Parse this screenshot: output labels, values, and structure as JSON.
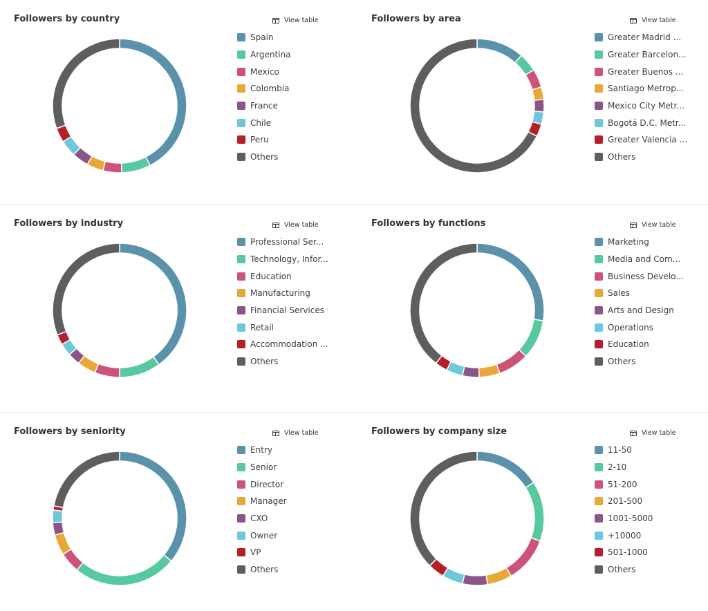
{
  "view_table_label": "View table",
  "colors": [
    "#5b92ab",
    "#57c99e",
    "#cc5478",
    "#e8a838",
    "#8a568a",
    "#6cc8da",
    "#b51f2a",
    "#5e5e5e"
  ],
  "chart_data": [
    {
      "type": "pie",
      "title": "Followers by country",
      "categories": [
        "Spain",
        "Argentina",
        "Mexico",
        "Colombia",
        "France",
        "Chile",
        "Peru",
        "Others"
      ],
      "values": [
        42.5,
        7,
        4.5,
        4,
        4,
        4,
        3.5,
        30.5
      ]
    },
    {
      "type": "pie",
      "title": "Followers by area",
      "categories": [
        "Greater Madrid ...",
        "Greater Barcelon...",
        "Greater Buenos ...",
        "Santiago Metrop...",
        "Mexico City Metr...",
        "Bogotá D.C. Metr...",
        "Greater Valencia ...",
        "Others"
      ],
      "values": [
        11.5,
        4.5,
        4.5,
        3,
        3,
        3,
        3,
        67.5
      ]
    },
    {
      "type": "pie",
      "title": "Followers by industry",
      "categories": [
        "Professional Ser...",
        "Technology, Infor...",
        "Education",
        "Manufacturing",
        "Financial Services",
        "Retail",
        "Accommodation ...",
        "Others"
      ],
      "values": [
        40,
        10,
        6,
        4.5,
        3,
        3,
        2.5,
        31
      ]
    },
    {
      "type": "pie",
      "title": "Followers by functions",
      "categories": [
        "Marketing",
        "Media and Com...",
        "Business Develo...",
        "Sales",
        "Arts and Design",
        "Operations",
        "Education",
        "Others"
      ],
      "values": [
        27.5,
        9.5,
        7.5,
        5,
        4,
        4,
        3,
        39.5
      ]
    },
    {
      "type": "pie",
      "title": "Followers by seniority",
      "categories": [
        "Entry",
        "Senior",
        "Director",
        "Manager",
        "CXO",
        "Owner",
        "VP",
        "Others"
      ],
      "values": [
        36,
        25,
        5,
        5,
        3,
        3,
        1,
        22
      ]
    },
    {
      "type": "pie",
      "title": "Followers by company size",
      "categories": [
        "11-50",
        "2-10",
        "51-200",
        "201-500",
        "1001-5000",
        "+10000",
        "501-1000",
        "Others"
      ],
      "values": [
        16,
        14.5,
        11,
        6,
        6,
        5,
        4,
        37.5
      ]
    }
  ]
}
